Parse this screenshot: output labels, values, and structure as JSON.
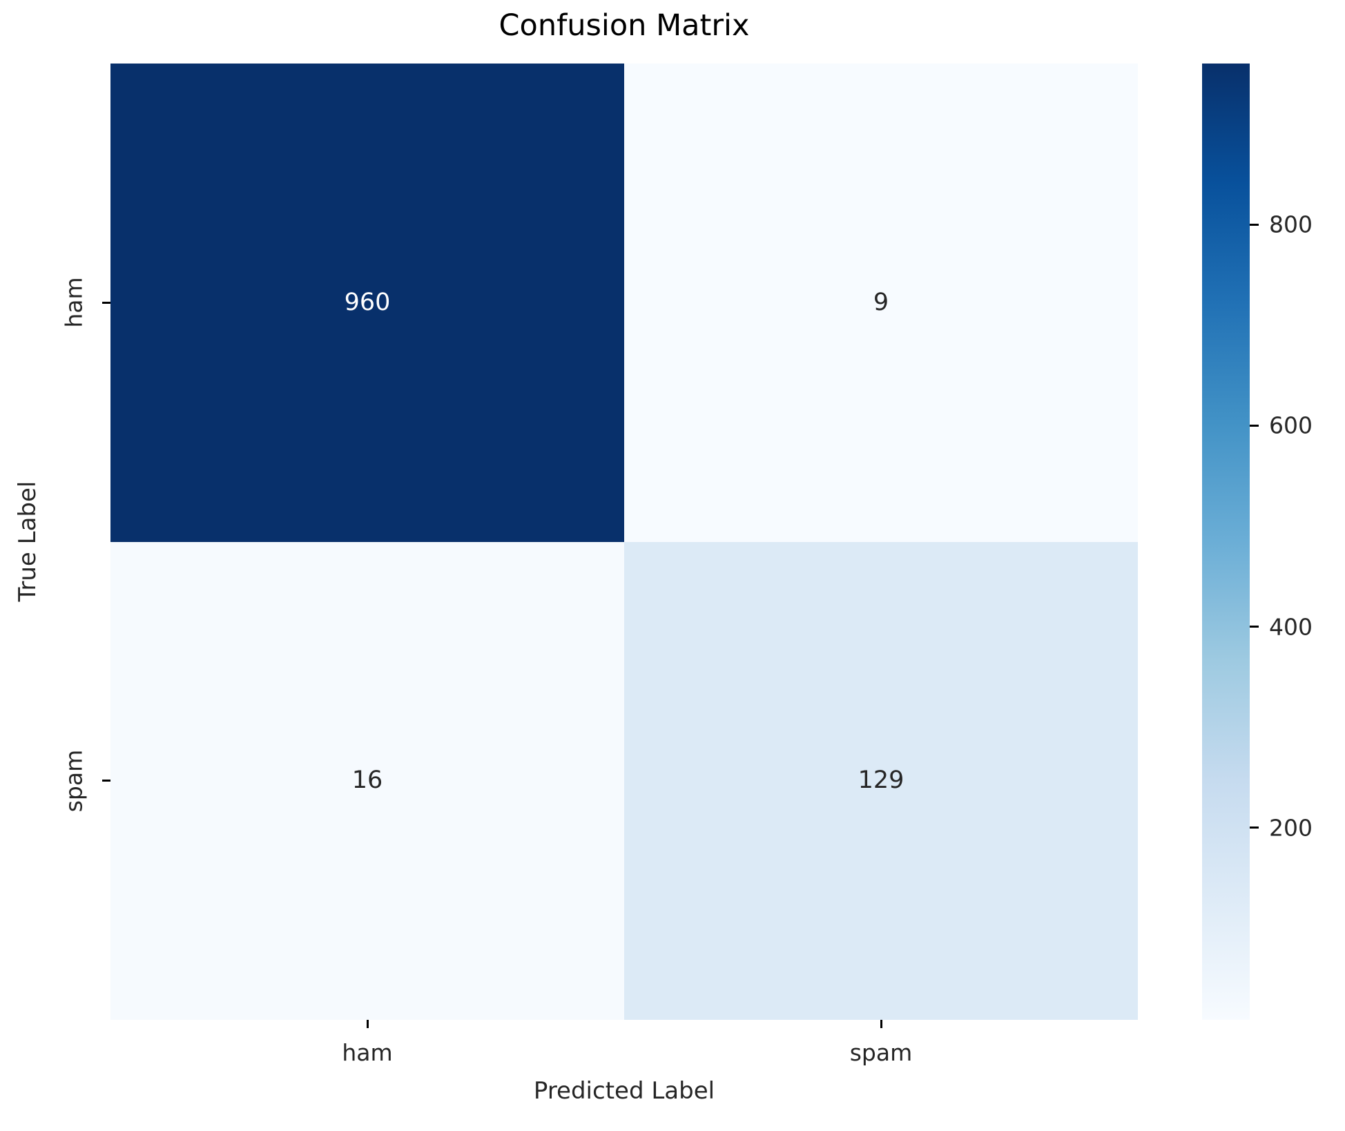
{
  "chart_data": {
    "type": "heatmap",
    "title": "Confusion Matrix",
    "xlabel": "Predicted Label",
    "ylabel": "True Label",
    "x_categories": [
      "ham",
      "spam"
    ],
    "y_categories": [
      "ham",
      "spam"
    ],
    "matrix": [
      [
        960,
        9
      ],
      [
        16,
        129
      ]
    ],
    "vmin": 9,
    "vmax": 960,
    "colormap": "Blues",
    "colorbar_position": "right",
    "colorbar_ticks": [
      200,
      400,
      600,
      800
    ],
    "grid": false,
    "cell_colors": [
      [
        "#08306b",
        "#f7fbff"
      ],
      [
        "#f6fafe",
        "#dceaf6"
      ]
    ],
    "cell_text_colors": [
      [
        "#ffffff",
        "#262626"
      ],
      [
        "#262626",
        "#262626"
      ]
    ],
    "colorbar_gradient_top_to_bottom": [
      "#08306b",
      "#08519c",
      "#2171b5",
      "#4292c6",
      "#6baed6",
      "#9ecae1",
      "#c6dbef",
      "#deebf7",
      "#f7fbff"
    ]
  }
}
